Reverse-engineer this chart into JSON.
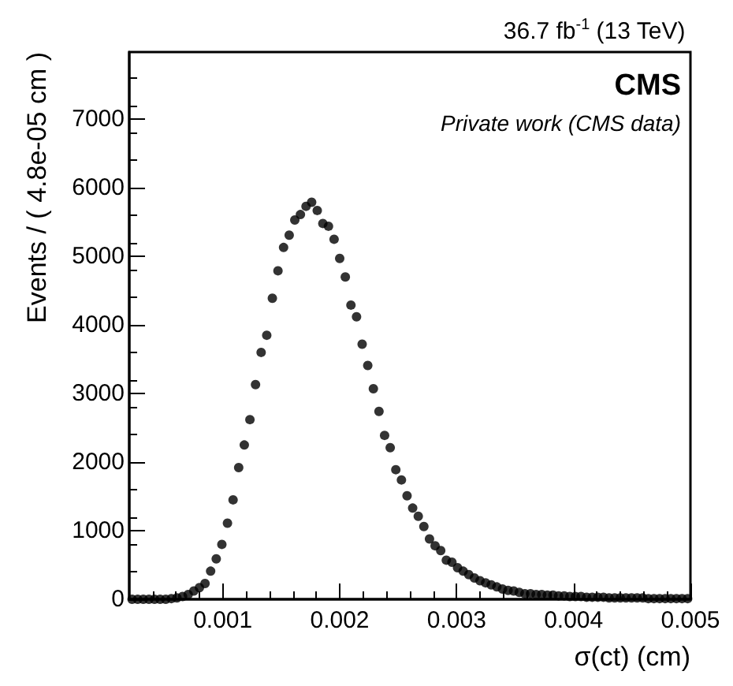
{
  "chart_data": {
    "type": "scatter",
    "title": "36.7 fb$^{-1}$ (13 TeV)",
    "xlabel": "σ(ct) (cm)",
    "ylabel": "Events / ( 4.8e-05 cm )",
    "annotations": [
      "CMS",
      "Private work (CMS data)"
    ],
    "x": [
      0.000224,
      0.000272,
      0.00032,
      0.000368,
      0.000416,
      0.000464,
      0.000512,
      0.00056,
      0.000608,
      0.000656,
      0.000704,
      0.000752,
      0.0008,
      0.000848,
      0.000896,
      0.000944,
      0.000992,
      0.00104,
      0.001088,
      0.001136,
      0.001184,
      0.001232,
      0.00128,
      0.001328,
      0.001376,
      0.001424,
      0.001472,
      0.00152,
      0.001568,
      0.001616,
      0.001664,
      0.001712,
      0.00176,
      0.001808,
      0.001856,
      0.001904,
      0.001952,
      0.002,
      0.002048,
      0.002096,
      0.002144,
      0.002192,
      0.00224,
      0.002288,
      0.002336,
      0.002384,
      0.002432,
      0.00248,
      0.002528,
      0.002576,
      0.002624,
      0.002672,
      0.00272,
      0.002768,
      0.002816,
      0.002864,
      0.002912,
      0.00296,
      0.003008,
      0.003056,
      0.003104,
      0.003152,
      0.0032,
      0.003248,
      0.003296,
      0.003344,
      0.003392,
      0.00344,
      0.003488,
      0.003536,
      0.003584,
      0.003632,
      0.00368,
      0.003728,
      0.003776,
      0.003824,
      0.003872,
      0.00392,
      0.003968,
      0.004016,
      0.004064,
      0.004112,
      0.00416,
      0.004208,
      0.004256,
      0.004304,
      0.004352,
      0.0044,
      0.004448,
      0.004496,
      0.004544,
      0.004592,
      0.00464,
      0.004688,
      0.004736,
      0.004784,
      0.004832,
      0.00488,
      0.004928,
      0.004976
    ],
    "values": [
      0,
      0,
      0,
      0,
      0,
      0,
      0,
      10,
      20,
      40,
      70,
      120,
      170,
      230,
      410,
      590,
      800,
      1110,
      1450,
      1920,
      2250,
      2620,
      3130,
      3600,
      3850,
      4390,
      4790,
      5130,
      5310,
      5530,
      5610,
      5730,
      5790,
      5670,
      5480,
      5440,
      5250,
      4970,
      4700,
      4290,
      4120,
      3720,
      3410,
      3070,
      2740,
      2390,
      2210,
      1890,
      1740,
      1510,
      1330,
      1210,
      1060,
      880,
      780,
      710,
      570,
      540,
      460,
      410,
      360,
      310,
      270,
      240,
      210,
      180,
      150,
      130,
      120,
      100,
      80,
      80,
      70,
      70,
      60,
      60,
      50,
      50,
      40,
      40,
      40,
      30,
      30,
      30,
      30,
      20,
      20,
      20,
      20,
      20,
      20,
      20,
      10,
      10,
      10,
      10,
      10,
      10,
      10,
      10
    ],
    "color": "#000000",
    "marker": "circle",
    "xlim": [
      0.0002,
      0.005
    ],
    "xticks": [
      0.001,
      0.002,
      0.003,
      0.004,
      0.005
    ],
    "ylim": [
      0,
      7980
    ],
    "yticks": [
      0,
      1000,
      2000,
      3000,
      4000,
      5000,
      6000,
      7000
    ]
  }
}
